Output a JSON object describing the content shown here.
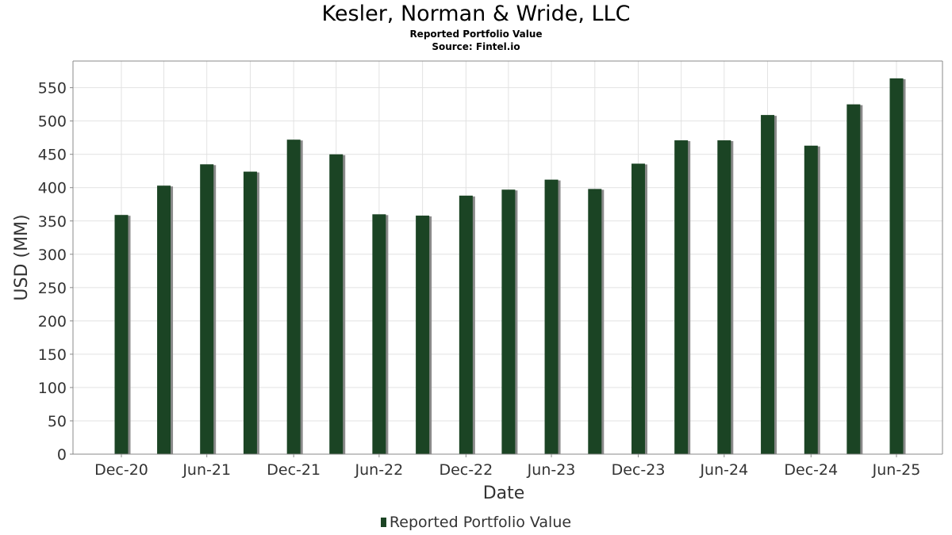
{
  "header": {
    "title": "Kesler, Norman & Wride, LLC",
    "subtitle": "Reported Portfolio Value",
    "source": "Source: Fintel.io"
  },
  "legend": {
    "label": "Reported Portfolio Value"
  },
  "colors": {
    "bar": "#1b4424",
    "shadow": "#8a8a8a",
    "grid": "#e2e2e2",
    "axis": "#888888"
  },
  "chart_data": {
    "type": "bar",
    "title": "Kesler, Norman & Wride, LLC",
    "subtitle": "Reported Portfolio Value",
    "xlabel": "Date",
    "ylabel": "USD (MM)",
    "ylim": [
      0,
      590
    ],
    "yticks": [
      0,
      50,
      100,
      150,
      200,
      250,
      300,
      350,
      400,
      450,
      500,
      550
    ],
    "xticks": [
      "Dec-20",
      "Jun-21",
      "Dec-21",
      "Jun-22",
      "Dec-22",
      "Jun-23",
      "Dec-23",
      "Jun-24",
      "Dec-24",
      "Jun-25"
    ],
    "grid": true,
    "legend_position": "bottom",
    "categories": [
      "2020-12-31",
      "2021-03-31",
      "2021-06-30",
      "2021-09-30",
      "2021-12-31",
      "2022-03-31",
      "2022-06-30",
      "2022-09-30",
      "2022-12-31",
      "2023-03-31",
      "2023-06-30",
      "2023-09-30",
      "2023-12-31",
      "2024-03-31",
      "2024-06-30",
      "2024-09-30",
      "2024-12-31",
      "2025-03-31",
      "2025-06-30"
    ],
    "series": [
      {
        "name": "Reported Portfolio Value",
        "values": [
          359,
          403,
          435,
          424,
          472,
          450,
          360,
          358,
          388,
          397,
          412,
          398,
          436,
          471,
          471,
          509,
          463,
          525,
          564
        ]
      }
    ]
  }
}
